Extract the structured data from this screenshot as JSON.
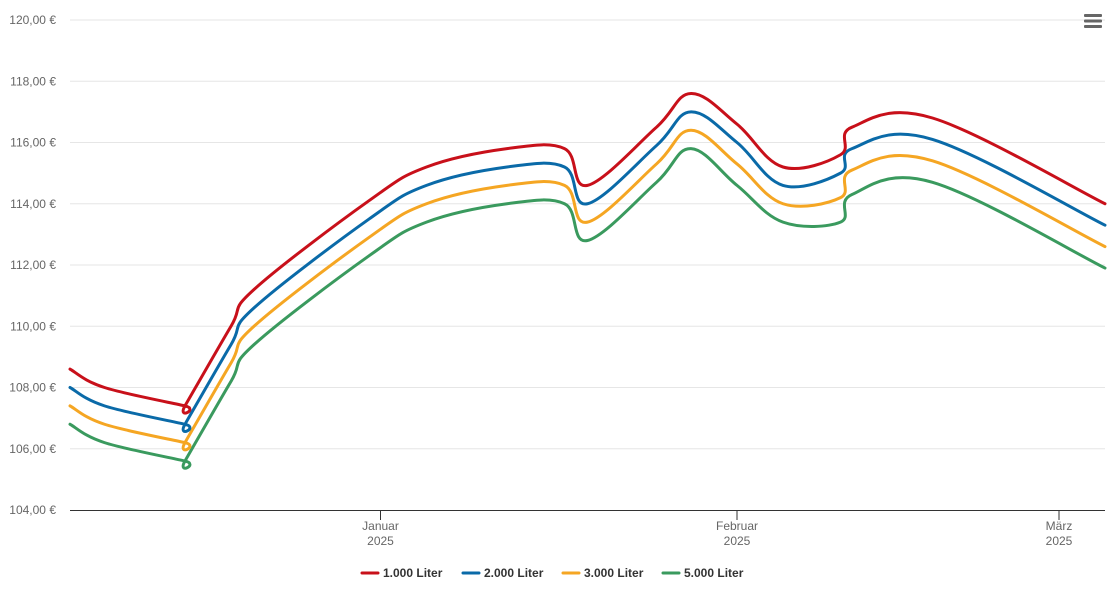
{
  "chart_data": {
    "type": "line",
    "title": "",
    "xlabel": "",
    "ylabel": "",
    "ylim": [
      104,
      120
    ],
    "yticks": [
      104,
      106,
      108,
      110,
      112,
      114,
      116,
      118,
      120
    ],
    "ytick_labels": [
      "104,00 €",
      "106,00 €",
      "108,00 €",
      "110,00 €",
      "112,00 €",
      "114,00 €",
      "116,00 €",
      "118,00 €",
      "120,00 €"
    ],
    "xlim": [
      "2024-12-05",
      "2025-03-05"
    ],
    "xticks": [
      {
        "date": "2025-01-01",
        "label": "Januar",
        "year": "2025"
      },
      {
        "date": "2025-02-01",
        "label": "Februar",
        "year": "2025"
      },
      {
        "date": "2025-03-01",
        "label": "März",
        "year": "2025"
      }
    ],
    "grid": true,
    "legend_position": "bottom-center",
    "x": [
      "2024-12-05",
      "2024-12-08",
      "2024-12-15",
      "2024-12-15",
      "2024-12-19",
      "2024-12-21",
      "2024-12-31",
      "2025-01-05",
      "2025-01-12",
      "2025-01-17",
      "2025-01-19",
      "2025-01-25",
      "2025-01-28",
      "2025-02-01",
      "2025-02-05",
      "2025-02-10",
      "2025-02-11",
      "2025-02-18",
      "2025-03-05"
    ],
    "series": [
      {
        "name": "1.000 Liter",
        "color": "#c8101a",
        "values": [
          108.6,
          108.0,
          107.4,
          107.4,
          110.0,
          111.2,
          114.1,
          115.2,
          115.8,
          115.8,
          114.6,
          116.5,
          117.6,
          116.6,
          115.2,
          115.6,
          116.5,
          116.8,
          114.0
        ]
      },
      {
        "name": "2.000 Liter",
        "color": "#0a6aa8",
        "values": [
          108.0,
          107.4,
          106.8,
          106.8,
          109.4,
          110.6,
          113.5,
          114.6,
          115.2,
          115.2,
          114.0,
          115.9,
          117.0,
          116.0,
          114.6,
          115.0,
          115.8,
          116.1,
          113.3
        ]
      },
      {
        "name": "3.000 Liter",
        "color": "#f5a623",
        "values": [
          107.4,
          106.8,
          106.2,
          106.2,
          108.8,
          110.0,
          112.9,
          114.0,
          114.6,
          114.6,
          113.4,
          115.3,
          116.4,
          115.3,
          114.0,
          114.2,
          115.1,
          115.4,
          112.6
        ]
      },
      {
        "name": "5.000 Liter",
        "color": "#3a9a5e",
        "values": [
          106.8,
          106.2,
          105.6,
          105.6,
          108.2,
          109.4,
          112.3,
          113.4,
          114.0,
          114.0,
          112.8,
          114.7,
          115.8,
          114.6,
          113.4,
          113.4,
          114.3,
          114.7,
          111.9
        ]
      }
    ]
  },
  "menu": {
    "icon": "hamburger-menu-icon"
  }
}
